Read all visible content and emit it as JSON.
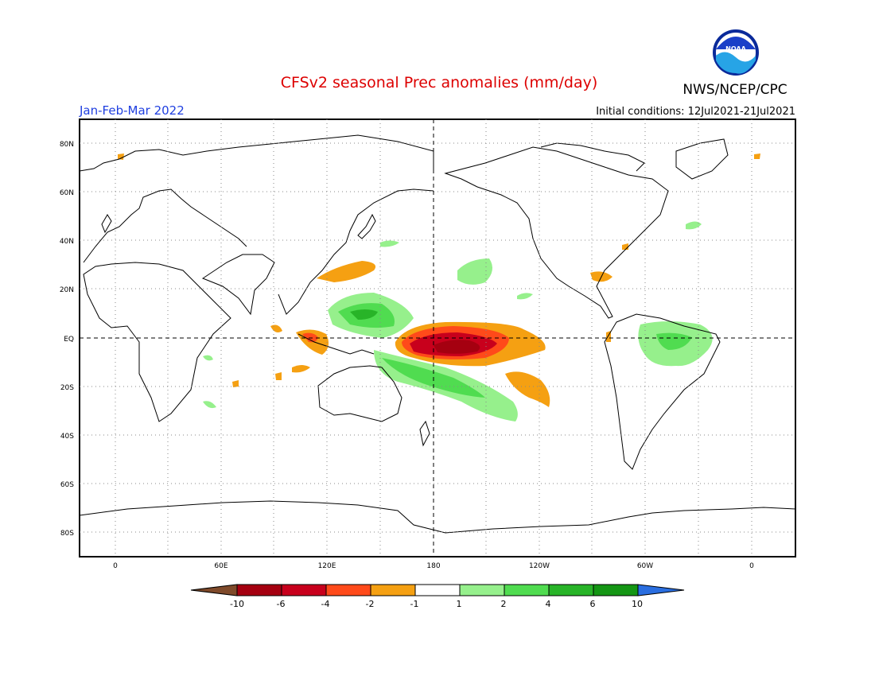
{
  "header": {
    "title": "CFSv2 seasonal Prec anomalies (mm/day)",
    "agency": "NWS/NCEP/CPC",
    "logo_text": "NOAA",
    "season": "Jan-Feb-Mar 2022",
    "initial_conditions": "Initial conditions: 12Jul2021-21Jul2021"
  },
  "axes": {
    "lat_labels": [
      "80N",
      "60N",
      "40N",
      "20N",
      "EQ",
      "20S",
      "40S",
      "60S",
      "80S"
    ],
    "lat_values": [
      80,
      60,
      40,
      20,
      0,
      -20,
      -40,
      -60,
      -80
    ],
    "lon_labels": [
      "0",
      "60E",
      "120E",
      "180",
      "120W",
      "60W",
      "0"
    ],
    "lon_values": [
      0,
      60,
      120,
      180,
      240,
      300,
      360
    ]
  },
  "colorbar": {
    "labels": [
      "-10",
      "-6",
      "-4",
      "-2",
      "-1",
      "1",
      "2",
      "4",
      "6",
      "10"
    ],
    "colors": [
      "#7f4a2a",
      "#a50010",
      "#c8001c",
      "#ff4a1a",
      "#f5a012",
      "#ffffff",
      "#96f08c",
      "#50dc50",
      "#28b428",
      "#149614",
      "#2a6ee0"
    ]
  },
  "colors": {
    "title": "#dd0000",
    "season": "#1f3fe0",
    "text": "#000000"
  }
}
